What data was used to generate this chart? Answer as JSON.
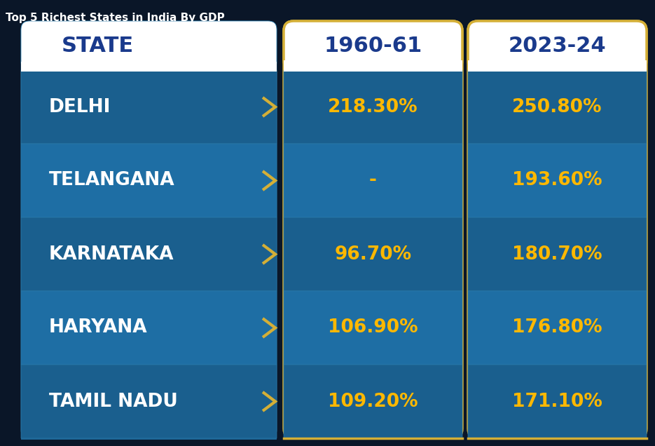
{
  "title": "Top 5 Richest States in India By GDP",
  "title_color": "#FFFFFF",
  "title_fontsize": 11,
  "col_headers": [
    "STATE",
    "1960-61",
    "2023-24"
  ],
  "states": [
    "DELHI",
    "TELANGANA",
    "KARNATAKA",
    "HARYANA",
    "TAMIL NADU"
  ],
  "values_1960": [
    "218.30%",
    "-",
    "96.70%",
    "106.90%",
    "109.20%"
  ],
  "values_2024": [
    "250.80%",
    "193.60%",
    "180.70%",
    "176.80%",
    "171.10%"
  ],
  "bg_color": "#0a1628",
  "col1_bg": "#1a6a9a",
  "col2_bg": "#1a6a9a",
  "col3_bg": "#1a6a9a",
  "header_bg": "#FFFFFF",
  "header_text_color": "#1a3a8c",
  "row_colors_odd": "#1a5f8a",
  "row_colors_even": "#1e6fa0",
  "state_text_color": "#FFFFFF",
  "value_text_color": "#FFB800",
  "border_color": "#D4AF37",
  "arrow_color": "#D4AF37",
  "separator_color": "#2a7aaa",
  "state_col_border": "#2a7aaa"
}
